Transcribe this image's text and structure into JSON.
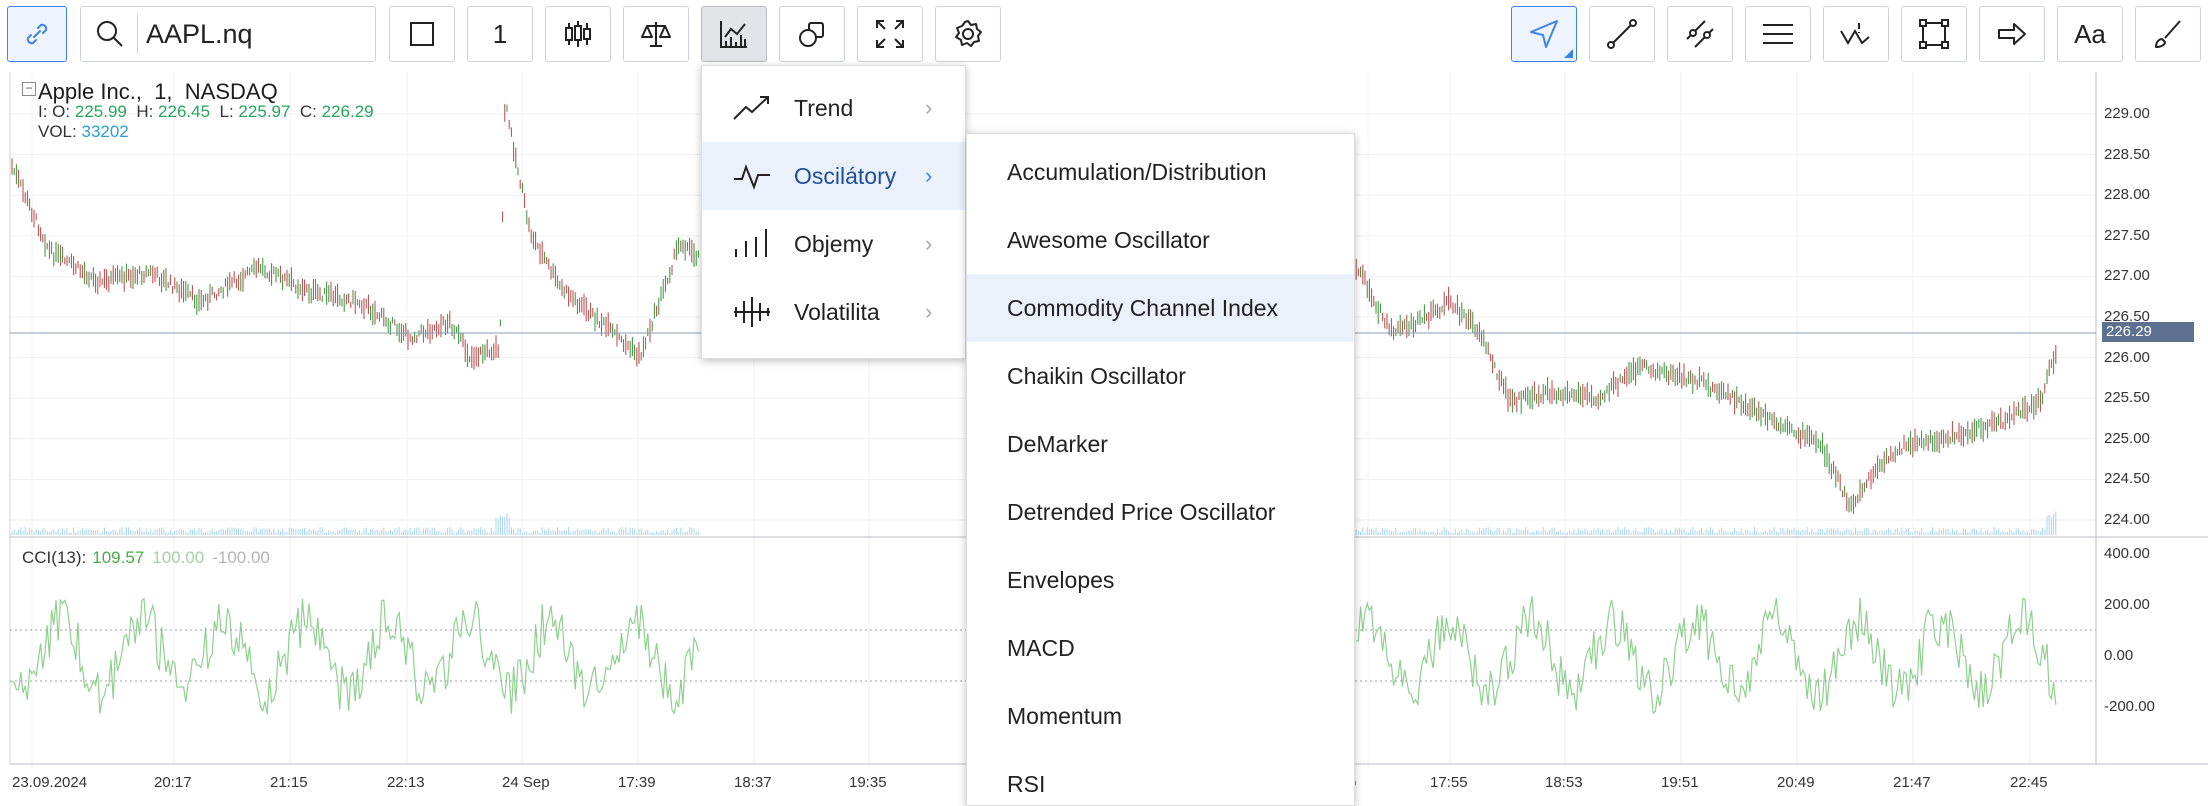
{
  "toolbar": {
    "symbol_value": "AAPL.nq",
    "interval": "1",
    "font_button": "Aa",
    "accent": "#3f82e6"
  },
  "legend": {
    "name": "Apple Inc.,",
    "interval": "1,",
    "exchange": "NASDAQ",
    "o_label": "I: O:",
    "o_value": "225.99",
    "h_label": "H:",
    "h_value": "226.45",
    "l_label": "L:",
    "l_value": "225.97",
    "c_label": "C:",
    "c_value": "226.29",
    "vol_label": "VOL:",
    "vol_value": "33202",
    "collapse": "−"
  },
  "cci": {
    "label": "CCI(13):",
    "value": "109.57",
    "upper": "100.00",
    "lower": "-100.00"
  },
  "price_axis": {
    "labels": [
      "229.00",
      "228.50",
      "228.00",
      "227.50",
      "227.00",
      "226.50",
      "226.00",
      "225.50",
      "225.00",
      "224.50",
      "224.00"
    ],
    "last": "226.29"
  },
  "cci_axis": {
    "labels": [
      "400.00",
      "200.00",
      "0.00",
      "-200.00"
    ]
  },
  "time_axis": {
    "labels": [
      "23.09.2024",
      "20:17",
      "21:15",
      "22:13",
      "24 Sep",
      "17:39",
      "18:37",
      "19:35",
      "o",
      "17:55",
      "18:53",
      "19:51",
      "20:49",
      "21:47",
      "22:45"
    ]
  },
  "menu1": {
    "items": [
      {
        "label": "Trend",
        "icon": "trend-icon"
      },
      {
        "label": "Oscilátory",
        "icon": "oscillator-icon"
      },
      {
        "label": "Objemy",
        "icon": "volume-bars-icon"
      },
      {
        "label": "Volatilita",
        "icon": "volatility-icon"
      }
    ],
    "selected": 1
  },
  "menu2": {
    "items": [
      "Accumulation/Distribution",
      "Awesome Oscillator",
      "Commodity Channel Index",
      "Chaikin Oscillator",
      "DeMarker",
      "Detrended Price Oscillator",
      "Envelopes",
      "MACD",
      "Momentum",
      "RSI"
    ],
    "selected": 2
  }
}
